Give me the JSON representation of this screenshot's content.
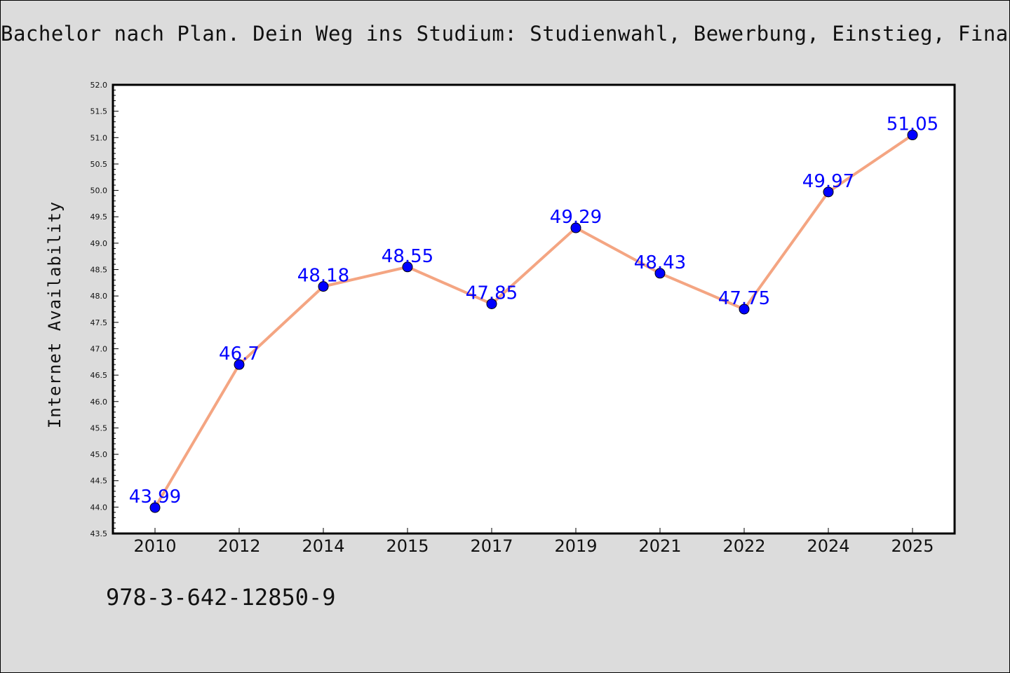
{
  "chart_data": {
    "type": "line",
    "title": "Bachelor nach Plan. Dein Weg ins Studium: Studienwahl, Bewerbung, Einstieg, Fina",
    "xlabel": "",
    "ylabel": "Internet Availability",
    "categories": [
      "2010",
      "2012",
      "2014",
      "2015",
      "2017",
      "2019",
      "2021",
      "2022",
      "2024",
      "2025"
    ],
    "series": [
      {
        "values": [
          43.99,
          46.7,
          48.18,
          48.55,
          47.85,
          49.29,
          48.43,
          47.75,
          49.97,
          51.05
        ]
      }
    ],
    "data_labels": [
      "43.99",
      "46.7",
      "48.18",
      "48.55",
      "47.85",
      "49.29",
      "48.43",
      "47.75",
      "49.97",
      "51.05"
    ],
    "ylim": [
      43.5,
      52.0
    ],
    "y_ticks": [
      "43.5",
      "44.0",
      "44.5",
      "45.0",
      "45.5",
      "46.0",
      "46.5",
      "47.0",
      "47.5",
      "48.0",
      "48.5",
      "49.0",
      "49.5",
      "50.0",
      "50.5",
      "51.0",
      "51.5",
      "52.0"
    ],
    "grid": false,
    "colors": {
      "line": "#f4a582",
      "marker": "#0000ff",
      "label": "#0000ff",
      "background": "#dcdcdc",
      "plot_background": "#ffffff"
    }
  },
  "footer": {
    "code": "978-3-642-12850-9"
  }
}
